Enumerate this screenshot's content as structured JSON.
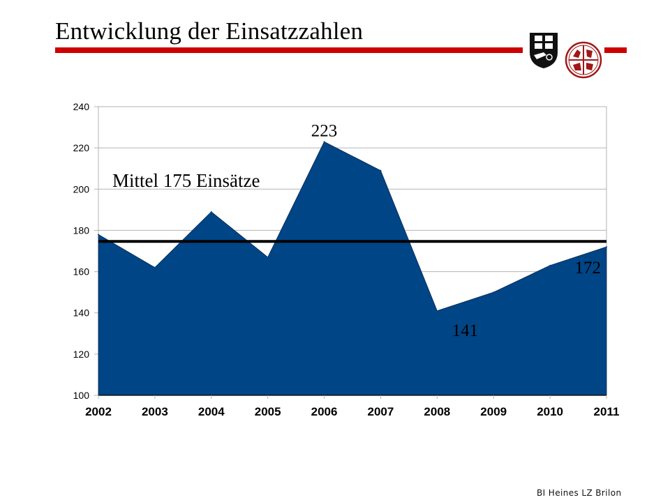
{
  "slide": {
    "title": "Entwicklung der Einsatzzahlen",
    "footer": "BI Heines LZ Brilon",
    "logos": [
      "coat-of-arms-icon",
      "fire-brigade-emblem-icon"
    ],
    "accent_color": "#cc0000"
  },
  "chart_data": {
    "type": "area",
    "title": "",
    "xlabel": "",
    "ylabel": "",
    "categories": [
      "2002",
      "2003",
      "2004",
      "2005",
      "2006",
      "2007",
      "2008",
      "2009",
      "2010",
      "2011"
    ],
    "series": [
      {
        "name": "Einsätze",
        "values": [
          178,
          162,
          189,
          167,
          223,
          209,
          141,
          150,
          163,
          172
        ],
        "color": "#004586"
      }
    ],
    "ylim": [
      100,
      240
    ],
    "yticks": [
      100,
      120,
      140,
      160,
      180,
      200,
      220,
      240
    ],
    "grid": true,
    "legend": "none",
    "reference_line": {
      "label": "Mittel 175 Einsätze",
      "value": 175,
      "color": "#000000"
    },
    "annotations": [
      {
        "text": "223",
        "category": "2006",
        "value": 223,
        "placement": "above"
      },
      {
        "text": "141",
        "category": "2008",
        "value": 141,
        "placement": "below"
      },
      {
        "text": "172",
        "category": "2011",
        "value": 172,
        "placement": "below-left"
      }
    ]
  }
}
